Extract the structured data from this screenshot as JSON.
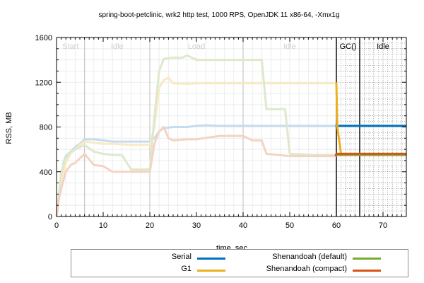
{
  "title": "spring-boot-petclinic, wrk2 http test, 1000 RPS, OpenJDK 11 x86-64, -Xmx1g",
  "chart_data": {
    "type": "line",
    "title": "spring-boot-petclinic, wrk2 http test, 1000 RPS, OpenJDK 11 x86-64, -Xmx1g",
    "xlabel": "time, sec",
    "ylabel": "RSS, MB",
    "xlim": [
      0,
      75
    ],
    "ylim": [
      0,
      1600
    ],
    "xticks": [
      0,
      10,
      20,
      30,
      40,
      50,
      60,
      70
    ],
    "yticks": [
      0,
      400,
      800,
      1200,
      1600
    ],
    "grid": true,
    "legend_position": "bottom",
    "phases": [
      {
        "label": "Start",
        "x_start": 0,
        "x_end": 6,
        "faded": true
      },
      {
        "label": "Idle",
        "x_start": 6,
        "x_end": 20,
        "faded": true
      },
      {
        "label": "Load",
        "x_start": 20,
        "x_end": 40,
        "faded": true
      },
      {
        "label": "Idle",
        "x_start": 40,
        "x_end": 60,
        "faded": true
      },
      {
        "label": "GC()",
        "x_start": 60,
        "x_end": 65,
        "faded": false
      },
      {
        "label": "Idle",
        "x_start": 65,
        "x_end": 75,
        "faded": false
      }
    ],
    "phase_boundaries": [
      6,
      20,
      40,
      60,
      65
    ],
    "series": [
      {
        "name": "Serial",
        "color": "#0072BD",
        "faded_color": "#c5dcee",
        "x": [
          0,
          0.5,
          1,
          1.5,
          2,
          3,
          4,
          5,
          6,
          8,
          10,
          12,
          16,
          19,
          20,
          21,
          22,
          23,
          25,
          28,
          30,
          32,
          35,
          40,
          45,
          50,
          55,
          59.8,
          60,
          65,
          70,
          75
        ],
        "y": [
          0,
          150,
          350,
          480,
          540,
          580,
          620,
          650,
          690,
          690,
          680,
          670,
          670,
          670,
          670,
          700,
          760,
          790,
          800,
          800,
          810,
          815,
          810,
          810,
          810,
          810,
          810,
          810,
          810,
          810,
          810,
          810
        ]
      },
      {
        "name": "G1",
        "color": "#EDB120",
        "faded_color": "#faeac4",
        "x": [
          0,
          0.5,
          1,
          2,
          3,
          4,
          5,
          6,
          8,
          10,
          12,
          16,
          19,
          20,
          21,
          22,
          23,
          24,
          25,
          28,
          30,
          35,
          40,
          45,
          50,
          55,
          59.8,
          60,
          60.2,
          61,
          65,
          70,
          75
        ],
        "y": [
          0,
          150,
          300,
          480,
          560,
          600,
          640,
          670,
          660,
          650,
          650,
          640,
          640,
          640,
          800,
          1150,
          1220,
          1240,
          1190,
          1185,
          1190,
          1190,
          1190,
          1190,
          1190,
          1190,
          1190,
          1190,
          800,
          560,
          560,
          560,
          560
        ]
      },
      {
        "name": "Shenandoah (default)",
        "color": "#77AC30",
        "faded_color": "#dde9cc",
        "x": [
          0,
          0.5,
          1,
          2,
          3,
          4,
          5,
          6,
          8,
          10,
          12,
          14,
          16,
          18,
          20,
          21,
          22,
          23,
          25,
          27,
          28,
          30,
          35,
          40,
          44,
          45,
          49,
          50,
          55,
          59.8,
          60,
          65,
          70,
          75
        ],
        "y": [
          0,
          200,
          400,
          520,
          580,
          600,
          620,
          640,
          580,
          560,
          550,
          550,
          420,
          420,
          420,
          900,
          1300,
          1410,
          1420,
          1420,
          1440,
          1400,
          1400,
          1400,
          1400,
          960,
          960,
          560,
          550,
          550,
          550,
          550,
          550,
          550
        ]
      },
      {
        "name": "Shenandoah (compact)",
        "color": "#D95319",
        "faded_color": "#f5d3c4",
        "x": [
          0,
          0.5,
          1,
          2,
          3,
          4,
          5,
          6,
          8,
          10,
          12,
          14,
          16,
          18,
          20,
          21,
          22,
          23,
          24,
          25,
          28,
          30,
          35,
          40,
          42,
          44,
          45,
          50,
          55,
          59.8,
          60,
          65,
          70,
          75
        ],
        "y": [
          0,
          150,
          250,
          400,
          460,
          480,
          520,
          560,
          460,
          450,
          400,
          400,
          400,
          400,
          400,
          650,
          760,
          800,
          700,
          680,
          690,
          690,
          720,
          720,
          680,
          680,
          560,
          540,
          540,
          540,
          560,
          560,
          560,
          560
        ]
      }
    ]
  },
  "legend": {
    "items": [
      {
        "name": "Serial",
        "color": "#0072BD"
      },
      {
        "name": "G1",
        "color": "#EDB120"
      },
      {
        "name": "Shenandoah (default)",
        "color": "#77AC30"
      },
      {
        "name": "Shenandoah (compact)",
        "color": "#D95319"
      }
    ]
  }
}
